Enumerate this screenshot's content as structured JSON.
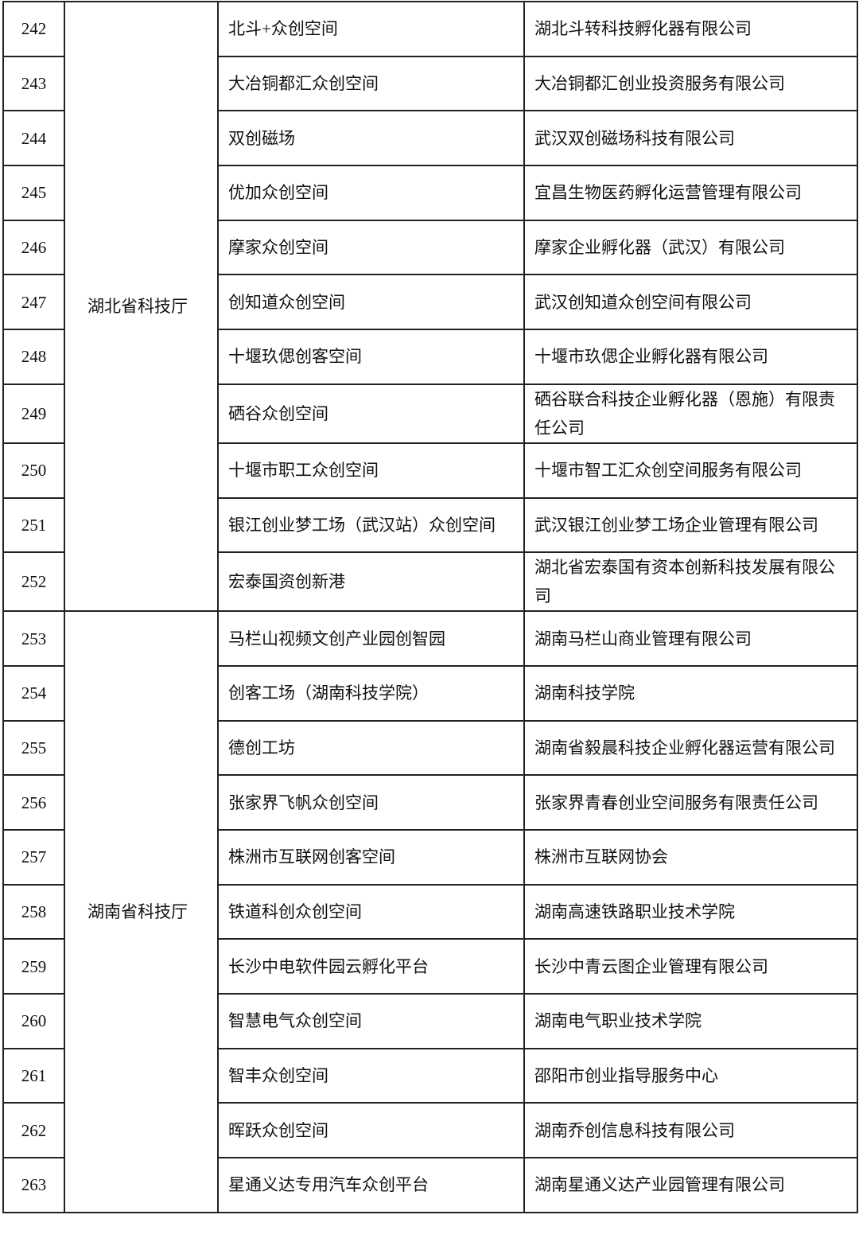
{
  "rows": [
    {
      "no": "242",
      "dept": "湖北省科技厅",
      "name": "北斗+众创空间",
      "org": "湖北斗转科技孵化器有限公司"
    },
    {
      "no": "243",
      "name": "大冶铜都汇众创空间",
      "org": "大冶铜都汇创业投资服务有限公司"
    },
    {
      "no": "244",
      "name": "双创磁场",
      "org": "武汉双创磁场科技有限公司"
    },
    {
      "no": "245",
      "name": "优加众创空间",
      "org": "宜昌生物医药孵化运营管理有限公司"
    },
    {
      "no": "246",
      "name": "摩家众创空间",
      "org": "摩家企业孵化器（武汉）有限公司"
    },
    {
      "no": "247",
      "name": "创知道众创空间",
      "org": "武汉创知道众创空间有限公司"
    },
    {
      "no": "248",
      "name": "十堰玖偲创客空间",
      "org": "十堰市玖偲企业孵化器有限公司"
    },
    {
      "no": "249",
      "name": "硒谷众创空间",
      "org": "硒谷联合科技企业孵化器（恩施）有限责任公司"
    },
    {
      "no": "250",
      "name": "十堰市职工众创空间",
      "org": "十堰市智工汇众创空间服务有限公司"
    },
    {
      "no": "251",
      "name": "银江创业梦工场（武汉站）众创空间",
      "org": "武汉银江创业梦工场企业管理有限公司"
    },
    {
      "no": "252",
      "name": "宏泰国资创新港",
      "org": "湖北省宏泰国有资本创新科技发展有限公司"
    },
    {
      "no": "253",
      "dept": "湖南省科技厅",
      "name": "马栏山视频文创产业园创智园",
      "org": "湖南马栏山商业管理有限公司"
    },
    {
      "no": "254",
      "name": "创客工场（湖南科技学院）",
      "org": "湖南科技学院"
    },
    {
      "no": "255",
      "name": "德创工坊",
      "org": "湖南省毅晨科技企业孵化器运营有限公司"
    },
    {
      "no": "256",
      "name": "张家界飞帆众创空间",
      "org": "张家界青春创业空间服务有限责任公司"
    },
    {
      "no": "257",
      "name": "株洲市互联网创客空间",
      "org": "株洲市互联网协会"
    },
    {
      "no": "258",
      "name": "铁道科创众创空间",
      "org": "湖南高速铁路职业技术学院"
    },
    {
      "no": "259",
      "name": "长沙中电软件园云孵化平台",
      "org": "长沙中青云图企业管理有限公司"
    },
    {
      "no": "260",
      "name": "智慧电气众创空间",
      "org": "湖南电气职业技术学院"
    },
    {
      "no": "261",
      "name": "智丰众创空间",
      "org": "邵阳市创业指导服务中心"
    },
    {
      "no": "262",
      "name": "晖跃众创空间",
      "org": "湖南乔创信息科技有限公司"
    },
    {
      "no": "263",
      "name": "星通义达专用汽车众创平台",
      "org": "湖南星通义达产业园管理有限公司"
    }
  ]
}
